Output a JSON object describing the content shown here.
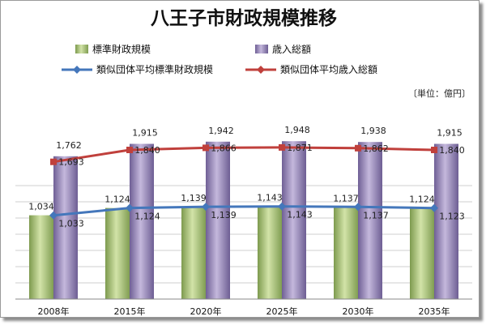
{
  "chart_data": {
    "type": "bar",
    "title": "八王子市財政規模推移",
    "unit_note": "〔単位：億円〕",
    "categories": [
      "2008年",
      "2015年",
      "2020年",
      "2025年",
      "2030年",
      "2035年"
    ],
    "ylim": [
      0,
      2300
    ],
    "grid": true,
    "legend_position": "top",
    "series": [
      {
        "name": "標準財政規模",
        "kind": "bar",
        "color": "#a9c27a",
        "values": [
          1034,
          1124,
          1139,
          1143,
          1137,
          1124
        ]
      },
      {
        "name": "歳入総額",
        "kind": "bar",
        "color": "#9585b4",
        "values": [
          1762,
          1915,
          1942,
          1948,
          1938,
          1915
        ]
      },
      {
        "name": "類似団体平均標準財政規模",
        "kind": "line",
        "color": "#4477bb",
        "values": [
          1033,
          1124,
          1139,
          1143,
          1137,
          1123
        ]
      },
      {
        "name": "類似団体平均歳入総額",
        "kind": "line",
        "color": "#c0403c",
        "values": [
          1693,
          1840,
          1866,
          1871,
          1862,
          1840
        ]
      }
    ],
    "labels": {
      "bar1": [
        "1,034",
        "1,124",
        "1,139",
        "1,143",
        "1,137",
        "1,124"
      ],
      "bar2": [
        "1,762",
        "1,915",
        "1,942",
        "1,948",
        "1,938",
        "1,915"
      ],
      "line1": [
        "1,033",
        "1,124",
        "1,139",
        "1,143",
        "1,137",
        "1,123"
      ],
      "line2": [
        "1,693",
        "1,840",
        "1,866",
        "1,871",
        "1,862",
        "1,840"
      ]
    }
  }
}
